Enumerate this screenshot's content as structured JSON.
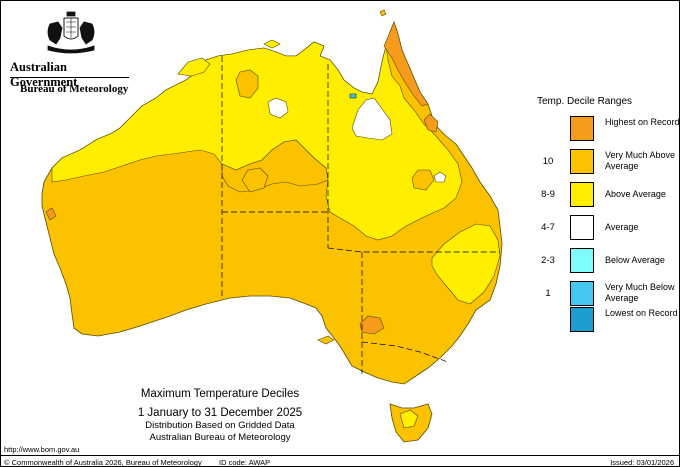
{
  "header": {
    "government": "Australian Government",
    "bureau": "Bureau of Meteorology"
  },
  "legend": {
    "title": "Temp. Decile Ranges",
    "items": [
      {
        "range": "",
        "label": "Highest on Record",
        "color": "#f79b1c"
      },
      {
        "range": "10",
        "label": "Very Much Above Average",
        "color": "#fbc200"
      },
      {
        "range": "8-9",
        "label": "Above Average",
        "color": "#ffee00"
      },
      {
        "range": "4-7",
        "label": "Average",
        "color": "#ffffff"
      },
      {
        "range": "2-3",
        "label": "Below Average",
        "color": "#7ffcfc"
      },
      {
        "range": "1",
        "label": "Very Much Below Average",
        "color": "#44c8f2"
      },
      {
        "range": "",
        "label": "Lowest on Record",
        "color": "#1c9ed0"
      }
    ]
  },
  "caption": {
    "title": "Maximum Temperature Deciles",
    "period": "1 January to 31 December 2025",
    "line1": "Distribution Based on Gridded Data",
    "line2": "Australian Bureau of Meteorology"
  },
  "footer": {
    "url": "http://www.bom.gov.au",
    "copyright": "© Commonwealth of Australia 2026, Bureau of Meteorology",
    "id_code": "ID code: AWAP",
    "issued": "Issued: 03/01/2026"
  },
  "colors": {
    "land_very_much_above": "#fbc200",
    "land_above": "#ffee00",
    "record_high": "#f79b1c",
    "average": "#ffffff",
    "outline": "#5a4a00"
  }
}
